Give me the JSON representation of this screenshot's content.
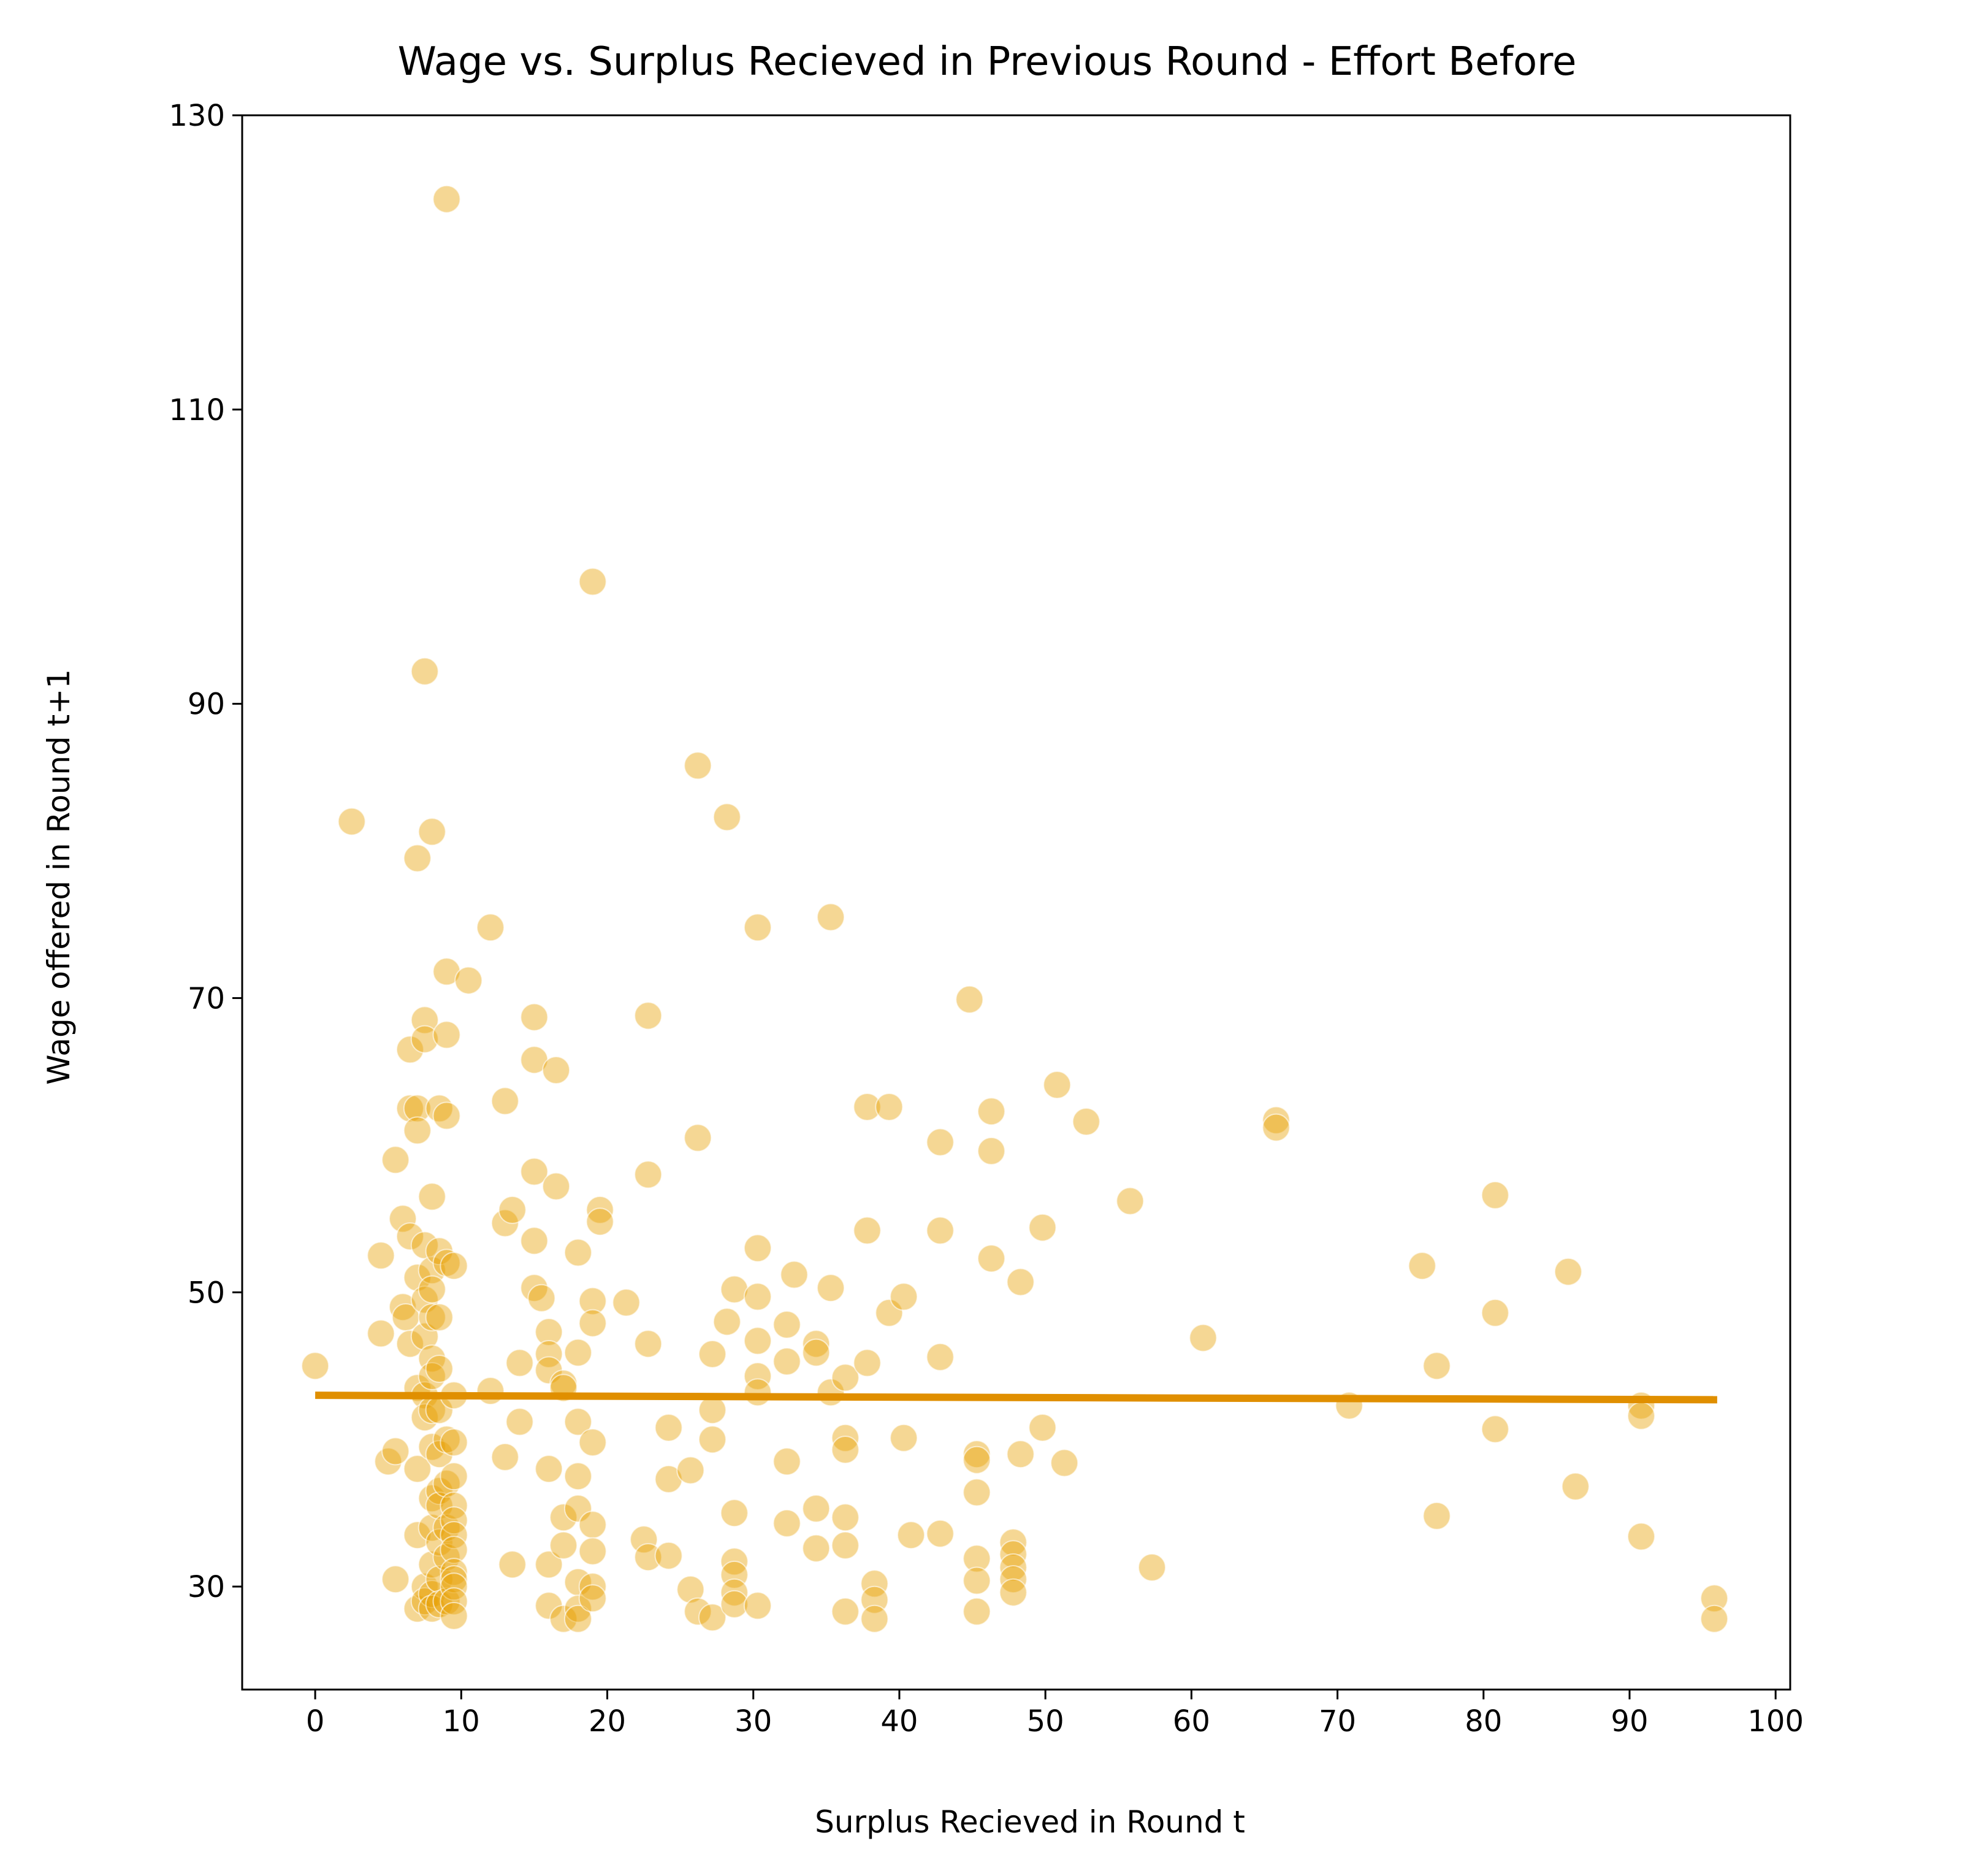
{
  "chart_data": {
    "type": "scatter",
    "title": "Wage vs. Surplus Recieved in Previous Round - Effort Before",
    "xlabel": "Surplus Recieved in Round t",
    "ylabel": "Wage offered in Round t+1",
    "xlim": [
      -5,
      101
    ],
    "ylim": [
      23,
      130
    ],
    "xticks": [
      0,
      10,
      20,
      30,
      40,
      50,
      60,
      70,
      80,
      90,
      100
    ],
    "yticks": [
      30,
      50,
      70,
      90,
      110,
      130
    ],
    "xtick_labels": [
      "0",
      "10",
      "20",
      "30",
      "40",
      "50",
      "60",
      "70",
      "80",
      "90",
      "100"
    ],
    "ytick_labels": [
      "30",
      "50",
      "70",
      "90",
      "110",
      "130"
    ],
    "grid": false,
    "legend": "none",
    "colors": {
      "points": "#E69F00",
      "line": "#E08F00",
      "axis": "#000000"
    },
    "points_opacity": 0.42,
    "trend_line": {
      "x": [
        0,
        96
      ],
      "y": [
        43.0,
        42.7
      ]
    },
    "points": [
      [
        0,
        45.0
      ],
      [
        2.5,
        82.0
      ],
      [
        4.5,
        52.5
      ],
      [
        4.5,
        47.2
      ],
      [
        5.0,
        38.5
      ],
      [
        5.5,
        39.2
      ],
      [
        5.5,
        59.0
      ],
      [
        5.5,
        30.5
      ],
      [
        6.0,
        55.0
      ],
      [
        6.0,
        49.0
      ],
      [
        6.2,
        48.3
      ],
      [
        6.5,
        53.8
      ],
      [
        6.5,
        46.5
      ],
      [
        6.5,
        66.5
      ],
      [
        6.5,
        62.5
      ],
      [
        7.0,
        79.5
      ],
      [
        7.0,
        62.5
      ],
      [
        7.0,
        61.0
      ],
      [
        7.0,
        51.0
      ],
      [
        7.0,
        43.5
      ],
      [
        7.0,
        38.0
      ],
      [
        7.0,
        33.5
      ],
      [
        7.0,
        28.5
      ],
      [
        7.5,
        92.2
      ],
      [
        7.5,
        68.5
      ],
      [
        7.5,
        67.2
      ],
      [
        7.5,
        53.2
      ],
      [
        7.5,
        49.5
      ],
      [
        7.5,
        47.0
      ],
      [
        7.5,
        43.0
      ],
      [
        7.5,
        41.5
      ],
      [
        7.5,
        30.0
      ],
      [
        7.5,
        29.0
      ],
      [
        8.0,
        81.3
      ],
      [
        8.0,
        56.5
      ],
      [
        8.0,
        51.5
      ],
      [
        8.0,
        50.2
      ],
      [
        8.0,
        48.3
      ],
      [
        8.0,
        45.5
      ],
      [
        8.0,
        44.3
      ],
      [
        8.0,
        42.0
      ],
      [
        8.0,
        39.5
      ],
      [
        8.0,
        36.0
      ],
      [
        8.0,
        34.0
      ],
      [
        8.0,
        31.5
      ],
      [
        8.0,
        29.5
      ],
      [
        8.0,
        28.5
      ],
      [
        8.5,
        62.5
      ],
      [
        8.5,
        52.8
      ],
      [
        8.5,
        48.3
      ],
      [
        8.5,
        44.8
      ],
      [
        8.5,
        42.0
      ],
      [
        8.5,
        39.0
      ],
      [
        8.5,
        36.5
      ],
      [
        8.5,
        35.5
      ],
      [
        8.5,
        33.0
      ],
      [
        8.5,
        30.5
      ],
      [
        8.5,
        28.8
      ],
      [
        9.0,
        124.3
      ],
      [
        9.0,
        71.8
      ],
      [
        9.0,
        67.5
      ],
      [
        9.0,
        62.0
      ],
      [
        9.0,
        52.0
      ],
      [
        9.0,
        40.0
      ],
      [
        9.0,
        37.0
      ],
      [
        9.0,
        34.0
      ],
      [
        9.0,
        32.0
      ],
      [
        9.0,
        29.0
      ],
      [
        9.5,
        51.8
      ],
      [
        9.5,
        43.0
      ],
      [
        9.5,
        39.8
      ],
      [
        9.5,
        37.5
      ],
      [
        9.5,
        35.5
      ],
      [
        9.5,
        34.5
      ],
      [
        9.5,
        33.5
      ],
      [
        9.5,
        32.5
      ],
      [
        9.5,
        31.0
      ],
      [
        9.5,
        30.5
      ],
      [
        9.5,
        30.0
      ],
      [
        9.5,
        29.0
      ],
      [
        9.5,
        28.0
      ],
      [
        10.5,
        71.2
      ],
      [
        12.0,
        74.8
      ],
      [
        12.0,
        43.3
      ],
      [
        13.0,
        63.0
      ],
      [
        13.0,
        54.7
      ],
      [
        13.0,
        38.8
      ],
      [
        13.5,
        55.6
      ],
      [
        13.5,
        31.5
      ],
      [
        14.0,
        45.2
      ],
      [
        14.0,
        41.2
      ],
      [
        15.0,
        68.7
      ],
      [
        15.0,
        65.8
      ],
      [
        15.0,
        58.2
      ],
      [
        15.0,
        53.5
      ],
      [
        15.0,
        50.3
      ],
      [
        15.5,
        49.6
      ],
      [
        16.0,
        47.3
      ],
      [
        16.0,
        45.8
      ],
      [
        16.0,
        44.7
      ],
      [
        16.0,
        38.0
      ],
      [
        16.0,
        31.5
      ],
      [
        16.0,
        28.7
      ],
      [
        16.5,
        65.1
      ],
      [
        16.5,
        57.2
      ],
      [
        17.0,
        43.8
      ],
      [
        17.0,
        43.5
      ],
      [
        17.0,
        34.7
      ],
      [
        17.0,
        32.8
      ],
      [
        17.0,
        27.8
      ],
      [
        18.0,
        52.7
      ],
      [
        18.0,
        45.9
      ],
      [
        18.0,
        41.2
      ],
      [
        18.0,
        37.5
      ],
      [
        18.0,
        35.3
      ],
      [
        18.0,
        30.3
      ],
      [
        18.0,
        28.5
      ],
      [
        18.0,
        27.8
      ],
      [
        19.0,
        98.3
      ],
      [
        19.0,
        49.4
      ],
      [
        19.0,
        47.9
      ],
      [
        19.0,
        39.8
      ],
      [
        19.0,
        34.2
      ],
      [
        19.0,
        32.4
      ],
      [
        19.0,
        30.0
      ],
      [
        19.0,
        29.2
      ],
      [
        19.5,
        55.6
      ],
      [
        19.5,
        54.8
      ],
      [
        21.3,
        49.3
      ],
      [
        22.5,
        33.2
      ],
      [
        22.8,
        58.0
      ],
      [
        22.8,
        46.5
      ],
      [
        22.8,
        32.0
      ],
      [
        22.8,
        68.8
      ],
      [
        24.2,
        40.8
      ],
      [
        24.2,
        37.3
      ],
      [
        24.2,
        32.1
      ],
      [
        25.7,
        37.9
      ],
      [
        25.7,
        29.8
      ],
      [
        26.2,
        85.8
      ],
      [
        26.2,
        60.5
      ],
      [
        26.2,
        28.3
      ],
      [
        27.2,
        45.8
      ],
      [
        27.2,
        42.0
      ],
      [
        27.2,
        40.0
      ],
      [
        27.2,
        27.9
      ],
      [
        28.2,
        82.3
      ],
      [
        28.2,
        48.0
      ],
      [
        28.7,
        50.2
      ],
      [
        28.7,
        35.0
      ],
      [
        28.7,
        31.7
      ],
      [
        28.7,
        30.8
      ],
      [
        28.7,
        29.6
      ],
      [
        28.7,
        28.8
      ],
      [
        30.3,
        74.8
      ],
      [
        30.3,
        53.0
      ],
      [
        30.3,
        49.7
      ],
      [
        30.3,
        46.7
      ],
      [
        30.3,
        44.3
      ],
      [
        30.3,
        43.2
      ],
      [
        30.3,
        28.7
      ],
      [
        32.3,
        47.8
      ],
      [
        32.3,
        45.3
      ],
      [
        32.3,
        38.5
      ],
      [
        32.3,
        34.3
      ],
      [
        32.8,
        51.2
      ],
      [
        34.3,
        46.5
      ],
      [
        34.3,
        45.9
      ],
      [
        34.3,
        35.3
      ],
      [
        34.3,
        32.6
      ],
      [
        35.3,
        75.5
      ],
      [
        35.3,
        50.3
      ],
      [
        35.3,
        43.2
      ],
      [
        36.3,
        44.2
      ],
      [
        36.3,
        40.1
      ],
      [
        36.3,
        39.3
      ],
      [
        36.3,
        34.7
      ],
      [
        36.3,
        32.8
      ],
      [
        36.3,
        28.3
      ],
      [
        37.8,
        62.6
      ],
      [
        37.8,
        54.2
      ],
      [
        37.8,
        45.2
      ],
      [
        38.3,
        30.2
      ],
      [
        38.3,
        29.1
      ],
      [
        38.3,
        27.8
      ],
      [
        39.3,
        48.6
      ],
      [
        39.3,
        62.6
      ],
      [
        40.3,
        49.7
      ],
      [
        40.3,
        40.1
      ],
      [
        40.8,
        33.5
      ],
      [
        42.8,
        60.2
      ],
      [
        42.8,
        54.2
      ],
      [
        42.8,
        45.6
      ],
      [
        42.8,
        33.6
      ],
      [
        44.8,
        69.9
      ],
      [
        45.3,
        39.0
      ],
      [
        45.3,
        38.6
      ],
      [
        45.3,
        36.4
      ],
      [
        45.3,
        31.9
      ],
      [
        45.3,
        30.4
      ],
      [
        45.3,
        28.3
      ],
      [
        46.3,
        62.3
      ],
      [
        46.3,
        59.6
      ],
      [
        46.3,
        52.3
      ],
      [
        47.8,
        33.0
      ],
      [
        47.8,
        32.2
      ],
      [
        47.8,
        31.3
      ],
      [
        47.8,
        30.5
      ],
      [
        47.8,
        29.6
      ],
      [
        48.3,
        50.7
      ],
      [
        48.3,
        39.0
      ],
      [
        49.8,
        54.4
      ],
      [
        49.8,
        40.8
      ],
      [
        50.8,
        64.1
      ],
      [
        51.3,
        38.4
      ],
      [
        52.8,
        61.6
      ],
      [
        55.8,
        56.2
      ],
      [
        57.3,
        31.3
      ],
      [
        60.8,
        46.9
      ],
      [
        65.8,
        61.7
      ],
      [
        65.8,
        61.2
      ],
      [
        70.8,
        42.3
      ],
      [
        75.8,
        51.8
      ],
      [
        76.8,
        45.0
      ],
      [
        76.8,
        34.8
      ],
      [
        80.8,
        56.6
      ],
      [
        80.8,
        48.6
      ],
      [
        80.8,
        40.7
      ],
      [
        85.8,
        51.4
      ],
      [
        86.3,
        36.8
      ],
      [
        90.8,
        42.3
      ],
      [
        90.8,
        41.6
      ],
      [
        90.8,
        33.4
      ],
      [
        95.8,
        29.2
      ],
      [
        95.8,
        27.8
      ]
    ]
  }
}
